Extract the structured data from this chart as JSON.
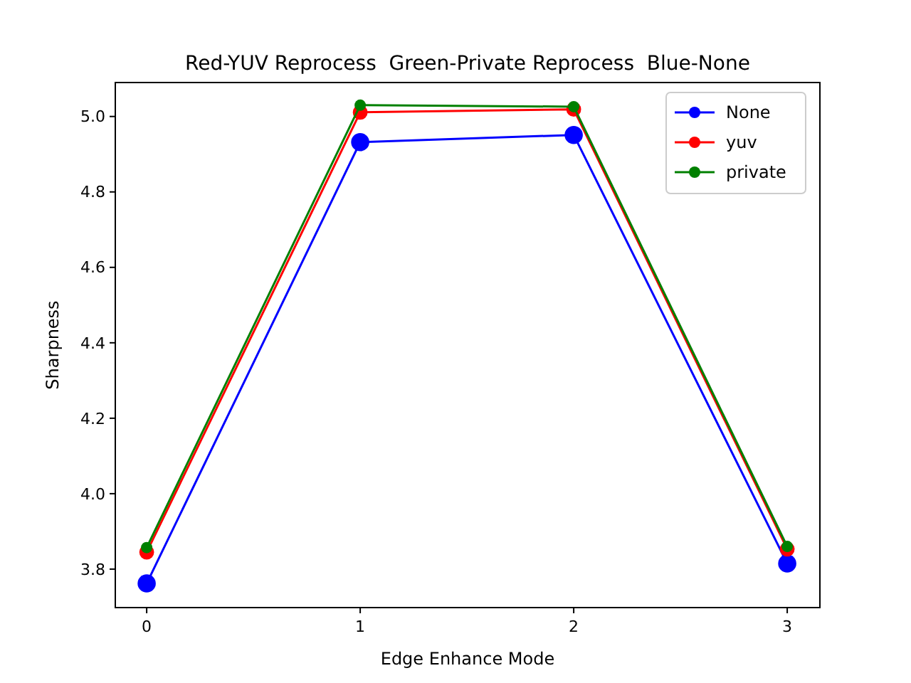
{
  "chart_data": {
    "type": "line",
    "title": "Red-YUV Reprocess  Green-Private Reprocess  Blue-None",
    "xlabel": "Edge Enhance Mode",
    "ylabel": "Sharpness",
    "x": [
      0,
      1,
      2,
      3
    ],
    "series": [
      {
        "name": "None",
        "color": "#0000ff",
        "values": [
          3.762,
          4.932,
          4.951,
          3.815
        ]
      },
      {
        "name": "yuv",
        "color": "#ff0000",
        "values": [
          3.845,
          5.011,
          5.019,
          3.853
        ]
      },
      {
        "name": "private",
        "color": "#008000",
        "values": [
          3.857,
          5.03,
          5.026,
          3.86
        ]
      }
    ],
    "xlim": [
      -0.147,
      3.153
    ],
    "ylim": [
      3.698,
      5.09
    ],
    "xticks": [
      0,
      1,
      2,
      3
    ],
    "yticks": [
      3.8,
      {
        "value": 4,
        "label": "4.0"
      },
      4.2,
      4.4,
      4.6,
      4.8,
      {
        "value": 5,
        "label": "5.0"
      }
    ],
    "legend": "top right",
    "marker": "circle",
    "line_style": "solid",
    "grid": false
  }
}
